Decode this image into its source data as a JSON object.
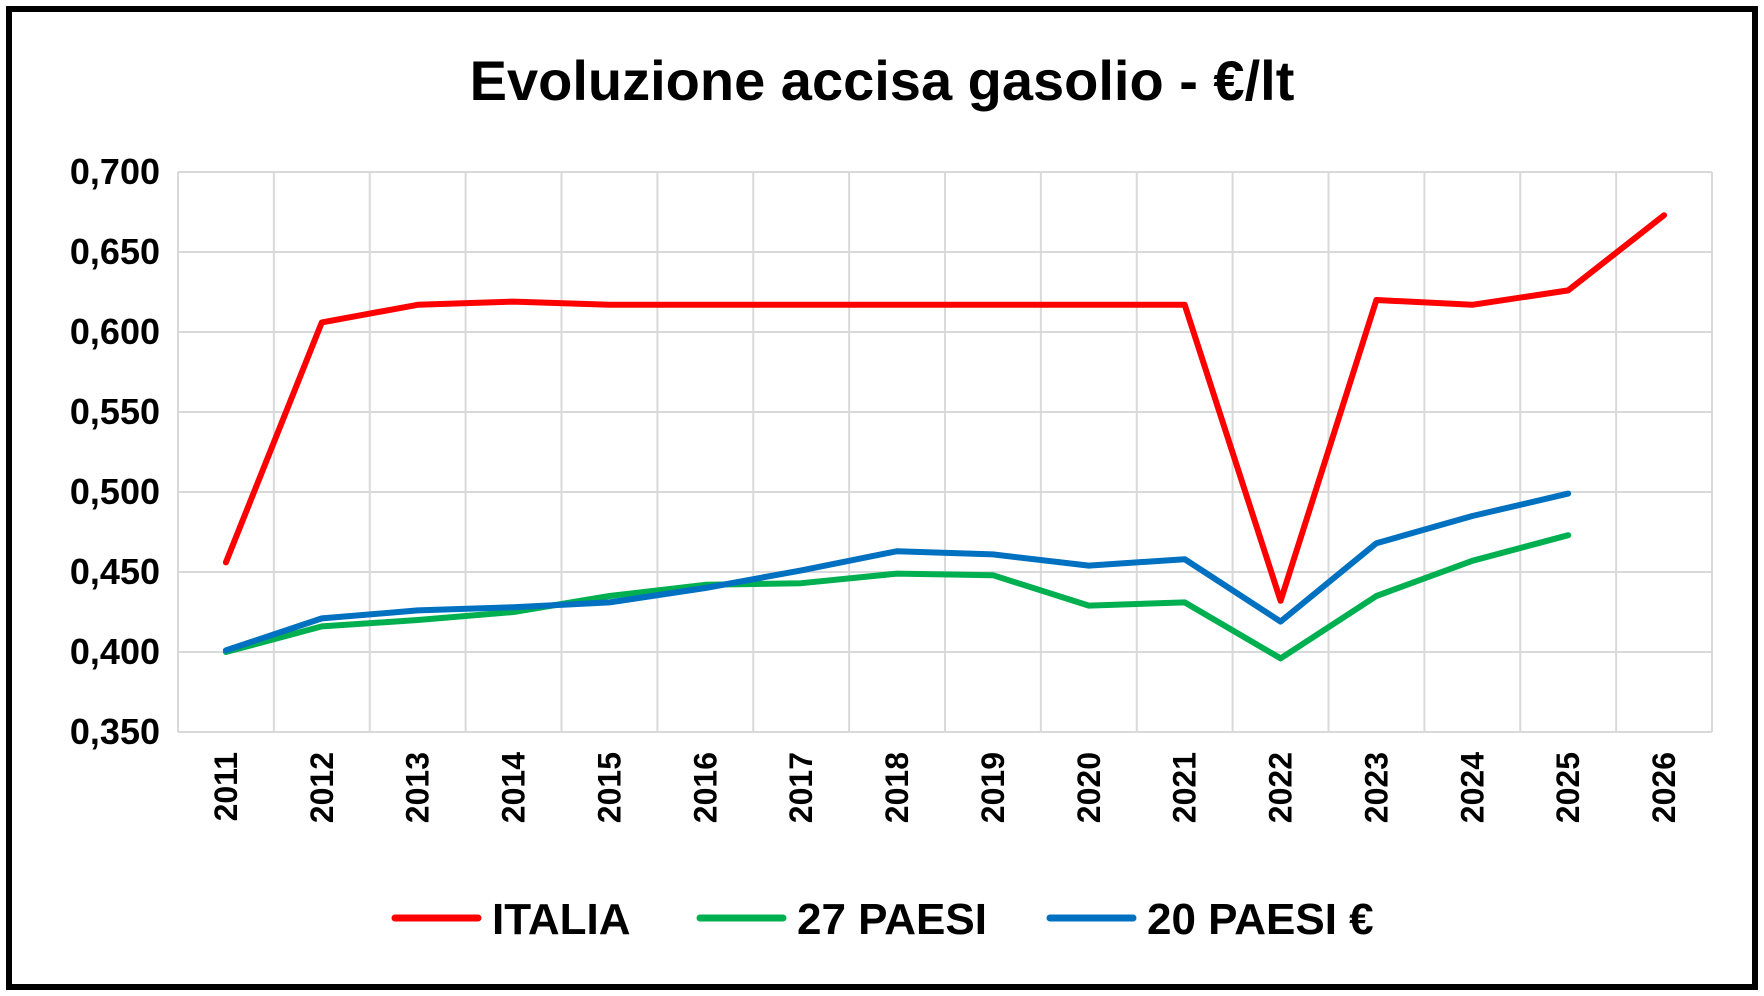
{
  "chart_data": {
    "type": "line",
    "title": "Evoluzione accisa gasolio - €/lt",
    "xlabel": "",
    "ylabel": "",
    "categories": [
      "2011",
      "2012",
      "2013",
      "2014",
      "2015",
      "2016",
      "2017",
      "2018",
      "2019",
      "2020",
      "2021",
      "2022",
      "2023",
      "2024",
      "2025",
      "2026"
    ],
    "ylim": [
      0.35,
      0.7
    ],
    "yticks": [
      0.35,
      0.4,
      0.45,
      0.5,
      0.55,
      0.6,
      0.65,
      0.7
    ],
    "ytick_labels": [
      "0,350",
      "0,400",
      "0,450",
      "0,500",
      "0,550",
      "0,600",
      "0,650",
      "0,700"
    ],
    "grid": true,
    "legend_position": "bottom",
    "series": [
      {
        "name": "ITALIA",
        "color": "#ff0000",
        "values": [
          0.456,
          0.606,
          0.617,
          0.619,
          0.617,
          0.617,
          0.617,
          0.617,
          0.617,
          0.617,
          0.617,
          0.432,
          0.62,
          0.617,
          0.626,
          0.673
        ]
      },
      {
        "name": "27 PAESI",
        "color": "#00b050",
        "values": [
          0.4,
          0.416,
          0.42,
          0.425,
          0.435,
          0.442,
          0.443,
          0.449,
          0.448,
          0.429,
          0.431,
          0.396,
          0.435,
          0.457,
          0.473,
          null
        ]
      },
      {
        "name": "20 PAESI €",
        "color": "#0070c0",
        "values": [
          0.401,
          0.421,
          0.426,
          0.428,
          0.431,
          0.44,
          0.451,
          0.463,
          0.461,
          0.454,
          0.458,
          0.419,
          0.468,
          0.485,
          0.499,
          null
        ]
      }
    ]
  }
}
